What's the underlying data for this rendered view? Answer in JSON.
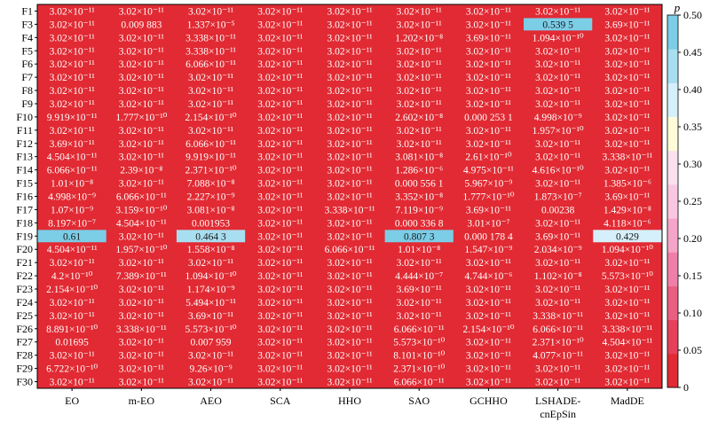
{
  "chart_data": {
    "type": "heatmap",
    "colorbar_label": "p",
    "colorbar_range": [
      0,
      0.5
    ],
    "colorbar_ticks": [
      "0",
      "0.05",
      "0.10",
      "0.15",
      "0.20",
      "0.25",
      "0.30",
      "0.35",
      "0.40",
      "0.45",
      "0.50"
    ],
    "colorbar_colors": [
      "#e12a33",
      "#e6405a",
      "#ea5e82",
      "#f07fa8",
      "#f5a6c8",
      "#f9c8e0",
      "#fbe1ee",
      "#fffcd8",
      "#d6f0fb",
      "#a8dff0",
      "#7ccde6"
    ],
    "columns": [
      "EO",
      "m-EO",
      "AEO",
      "SCA",
      "HHO",
      "SAO",
      "GCHHO",
      "LSHADE-\ncnEpSin",
      "MadDE"
    ],
    "rows": [
      {
        "label": "F1",
        "cells": [
          "3.02×10⁻¹¹",
          "3.02×10⁻¹¹",
          "3.02×10⁻¹¹",
          "3.02×10⁻¹¹",
          "3.02×10⁻¹¹",
          "3.02×10⁻¹¹",
          "3.02×10⁻¹¹",
          "3.02×10⁻¹¹",
          "3.02×10⁻¹¹"
        ],
        "p": [
          0,
          0,
          0,
          0,
          0,
          0,
          0,
          0,
          0
        ]
      },
      {
        "label": "F3",
        "cells": [
          "3.02×10⁻¹¹",
          "0.009 883",
          "1.337×10⁻⁵",
          "3.02×10⁻¹¹",
          "3.02×10⁻¹¹",
          "3.02×10⁻¹¹",
          "3.02×10⁻¹¹",
          "0.539 5",
          "3.69×10⁻¹¹"
        ],
        "p": [
          0,
          0.009883,
          0,
          0,
          0,
          0,
          0,
          0.5395,
          0
        ]
      },
      {
        "label": "F4",
        "cells": [
          "3.02×10⁻¹¹",
          "3.02×10⁻¹¹",
          "3.338×10⁻¹¹",
          "3.02×10⁻¹¹",
          "3.02×10⁻¹¹",
          "1.202×10⁻⁸",
          "3.69×10⁻¹¹",
          "1.094×10⁻¹⁰",
          "3.02×10⁻¹¹"
        ],
        "p": [
          0,
          0,
          0,
          0,
          0,
          0,
          0,
          0,
          0
        ]
      },
      {
        "label": "F5",
        "cells": [
          "3.02×10⁻¹¹",
          "3.02×10⁻¹¹",
          "3.338×10⁻¹¹",
          "3.02×10⁻¹¹",
          "3.02×10⁻¹¹",
          "3.02×10⁻¹¹",
          "3.02×10⁻¹¹",
          "3.02×10⁻¹¹",
          "3.02×10⁻¹¹"
        ],
        "p": [
          0,
          0,
          0,
          0,
          0,
          0,
          0,
          0,
          0
        ]
      },
      {
        "label": "F6",
        "cells": [
          "3.02×10⁻¹¹",
          "3.02×10⁻¹¹",
          "6.066×10⁻¹¹",
          "3.02×10⁻¹¹",
          "3.02×10⁻¹¹",
          "3.02×10⁻¹¹",
          "3.02×10⁻¹¹",
          "3.02×10⁻¹¹",
          "3.02×10⁻¹¹"
        ],
        "p": [
          0,
          0,
          0,
          0,
          0,
          0,
          0,
          0,
          0
        ]
      },
      {
        "label": "F7",
        "cells": [
          "3.02×10⁻¹¹",
          "3.02×10⁻¹¹",
          "3.02×10⁻¹¹",
          "3.02×10⁻¹¹",
          "3.02×10⁻¹¹",
          "3.02×10⁻¹¹",
          "3.02×10⁻¹¹",
          "3.02×10⁻¹¹",
          "3.02×10⁻¹¹"
        ],
        "p": [
          0,
          0,
          0,
          0,
          0,
          0,
          0,
          0,
          0
        ]
      },
      {
        "label": "F8",
        "cells": [
          "3.02×10⁻¹¹",
          "3.02×10⁻¹¹",
          "3.02×10⁻¹¹",
          "3.02×10⁻¹¹",
          "3.02×10⁻¹¹",
          "3.02×10⁻¹¹",
          "3.02×10⁻¹¹",
          "3.02×10⁻¹¹",
          "3.02×10⁻¹¹"
        ],
        "p": [
          0,
          0,
          0,
          0,
          0,
          0,
          0,
          0,
          0
        ]
      },
      {
        "label": "F9",
        "cells": [
          "3.02×10⁻¹¹",
          "3.02×10⁻¹¹",
          "3.02×10⁻¹¹",
          "3.02×10⁻¹¹",
          "3.02×10⁻¹¹",
          "3.02×10⁻¹¹",
          "3.02×10⁻¹¹",
          "3.02×10⁻¹¹",
          "3.02×10⁻¹¹"
        ],
        "p": [
          0,
          0,
          0,
          0,
          0,
          0,
          0,
          0,
          0
        ]
      },
      {
        "label": "F10",
        "cells": [
          "9.919×10⁻¹¹",
          "1.777×10⁻¹⁰",
          "2.154×10⁻¹⁰",
          "3.02×10⁻¹¹",
          "3.02×10⁻¹¹",
          "2.602×10⁻⁸",
          "0.000 253 1",
          "4.998×10⁻⁹",
          "3.02×10⁻¹¹"
        ],
        "p": [
          0,
          0,
          0,
          0,
          0,
          0,
          0.0002531,
          0,
          0
        ]
      },
      {
        "label": "F11",
        "cells": [
          "3.02×10⁻¹¹",
          "3.02×10⁻¹¹",
          "3.02×10⁻¹¹",
          "3.02×10⁻¹¹",
          "3.02×10⁻¹¹",
          "3.02×10⁻¹¹",
          "3.02×10⁻¹¹",
          "1.957×10⁻¹⁰",
          "3.02×10⁻¹¹"
        ],
        "p": [
          0,
          0,
          0,
          0,
          0,
          0,
          0,
          0,
          0
        ]
      },
      {
        "label": "F12",
        "cells": [
          "3.69×10⁻¹¹",
          "3.02×10⁻¹¹",
          "6.066×10⁻¹¹",
          "3.02×10⁻¹¹",
          "3.02×10⁻¹¹",
          "3.02×10⁻¹¹",
          "3.02×10⁻¹¹",
          "3.02×10⁻¹¹",
          "3.02×10⁻¹¹"
        ],
        "p": [
          0,
          0,
          0,
          0,
          0,
          0,
          0,
          0,
          0
        ]
      },
      {
        "label": "F13",
        "cells": [
          "4.504×10⁻¹¹",
          "3.02×10⁻¹¹",
          "9.919×10⁻¹¹",
          "3.02×10⁻¹¹",
          "3.02×10⁻¹¹",
          "3.081×10⁻⁸",
          "2.61×10⁻¹⁰",
          "3.02×10⁻¹¹",
          "3.338×10⁻¹¹"
        ],
        "p": [
          0,
          0,
          0,
          0,
          0,
          0,
          0,
          0,
          0
        ]
      },
      {
        "label": "F14",
        "cells": [
          "6.066×10⁻¹¹",
          "2.39×10⁻⁸",
          "2.371×10⁻¹⁰",
          "3.02×10⁻¹¹",
          "3.02×10⁻¹¹",
          "1.286×10⁻⁶",
          "4.975×10⁻¹¹",
          "4.616×10⁻¹⁰",
          "3.02×10⁻¹¹"
        ],
        "p": [
          0,
          0,
          0,
          0,
          0,
          0,
          0,
          0,
          0
        ]
      },
      {
        "label": "F15",
        "cells": [
          "1.01×10⁻⁸",
          "3.02×10⁻¹¹",
          "7.088×10⁻⁸",
          "3.02×10⁻¹¹",
          "3.02×10⁻¹¹",
          "0.000 556 1",
          "5.967×10⁻⁹",
          "3.02×10⁻¹¹",
          "1.385×10⁻⁶"
        ],
        "p": [
          0,
          0,
          0,
          0,
          0,
          0.0005561,
          0,
          0,
          0
        ]
      },
      {
        "label": "F16",
        "cells": [
          "4.998×10⁻⁹",
          "6.066×10⁻¹¹",
          "2.227×10⁻⁹",
          "3.02×10⁻¹¹",
          "3.02×10⁻¹¹",
          "3.352×10⁻⁸",
          "1.777×10⁻¹⁰",
          "1.873×10⁻⁷",
          "3.69×10⁻¹¹"
        ],
        "p": [
          0,
          0,
          0,
          0,
          0,
          0,
          0,
          0,
          0
        ]
      },
      {
        "label": "F17",
        "cells": [
          "1.07×10⁻⁹",
          "3.159×10⁻¹⁰",
          "3.081×10⁻⁸",
          "3.02×10⁻¹¹",
          "3.338×10⁻¹¹",
          "7.119×10⁻⁹",
          "3.69×10⁻¹¹",
          "0.00238",
          "1.429×10⁻⁸"
        ],
        "p": [
          0,
          0,
          0,
          0,
          0,
          0,
          0,
          0.00238,
          0
        ]
      },
      {
        "label": "F18",
        "cells": [
          "8.197×10⁻⁷",
          "4.504×10⁻¹¹",
          "0.001953",
          "3.02×10⁻¹¹",
          "3.02×10⁻¹¹",
          "0.000 336 8",
          "3.01×10⁻⁷",
          "3.02×10⁻¹¹",
          "4.118×10⁻⁶"
        ],
        "p": [
          0,
          0,
          0.001953,
          0,
          0,
          0.0003368,
          0,
          0,
          0
        ]
      },
      {
        "label": "F19",
        "cells": [
          "0.61",
          "3.02×10⁻¹¹",
          "0.464 3",
          "3.02×10⁻¹¹",
          "3.02×10⁻¹¹",
          "0.807 3",
          "0.000 178 4",
          "3.69×10⁻¹¹",
          "0.429"
        ],
        "p": [
          0.61,
          0,
          0.4643,
          0,
          0,
          0.8073,
          0.0001784,
          0,
          0.429
        ]
      },
      {
        "label": "F20",
        "cells": [
          "4.504×10⁻¹¹",
          "1.957×10⁻¹⁰",
          "1.558×10⁻⁸",
          "3.02×10⁻¹¹",
          "6.066×10⁻¹¹",
          "1.01×10⁻⁸",
          "1.547×10⁻⁹",
          "2.034×10⁻⁹",
          "1.094×10⁻¹⁰"
        ],
        "p": [
          0,
          0,
          0,
          0,
          0,
          0,
          0,
          0,
          0
        ]
      },
      {
        "label": "F21",
        "cells": [
          "3.02×10⁻¹¹",
          "3.02×10⁻¹¹",
          "3.02×10⁻¹¹",
          "3.02×10⁻¹¹",
          "3.02×10⁻¹¹",
          "3.02×10⁻¹¹",
          "3.02×10⁻¹¹",
          "3.02×10⁻¹¹",
          "3.02×10⁻¹¹"
        ],
        "p": [
          0,
          0,
          0,
          0,
          0,
          0,
          0,
          0,
          0
        ]
      },
      {
        "label": "F22",
        "cells": [
          "4.2×10⁻¹⁰",
          "7.389×10⁻¹¹",
          "1.094×10⁻¹⁰",
          "3.02×10⁻¹¹",
          "3.02×10⁻¹¹",
          "4.444×10⁻⁷",
          "4.744×10⁻⁶",
          "1.102×10⁻⁸",
          "5.573×10⁻¹⁰"
        ],
        "p": [
          0,
          0,
          0,
          0,
          0,
          0,
          0,
          0,
          0
        ]
      },
      {
        "label": "F23",
        "cells": [
          "2.154×10⁻¹⁰",
          "3.02×10⁻¹¹",
          "1.174×10⁻⁹",
          "3.02×10⁻¹¹",
          "3.02×10⁻¹¹",
          "3.69×10⁻¹¹",
          "3.02×10⁻¹¹",
          "3.02×10⁻¹¹",
          "3.02×10⁻¹¹"
        ],
        "p": [
          0,
          0,
          0,
          0,
          0,
          0,
          0,
          0,
          0
        ]
      },
      {
        "label": "F24",
        "cells": [
          "3.02×10⁻¹¹",
          "3.02×10⁻¹¹",
          "5.494×10⁻¹¹",
          "3.02×10⁻¹¹",
          "3.02×10⁻¹¹",
          "3.02×10⁻¹¹",
          "3.02×10⁻¹¹",
          "3.02×10⁻¹¹",
          "3.02×10⁻¹¹"
        ],
        "p": [
          0,
          0,
          0,
          0,
          0,
          0,
          0,
          0,
          0
        ]
      },
      {
        "label": "F25",
        "cells": [
          "3.02×10⁻¹¹",
          "3.02×10⁻¹¹",
          "3.69×10⁻¹¹",
          "3.02×10⁻¹¹",
          "3.02×10⁻¹¹",
          "3.02×10⁻¹¹",
          "3.02×10⁻¹¹",
          "3.338×10⁻¹¹",
          "3.02×10⁻¹¹"
        ],
        "p": [
          0,
          0,
          0,
          0,
          0,
          0,
          0,
          0,
          0
        ]
      },
      {
        "label": "F26",
        "cells": [
          "8.891×10⁻¹⁰",
          "3.338×10⁻¹¹",
          "5.573×10⁻¹⁰",
          "3.02×10⁻¹¹",
          "3.02×10⁻¹¹",
          "6.066×10⁻¹¹",
          "2.154×10⁻¹⁰",
          "6.066×10⁻¹¹",
          "3.338×10⁻¹¹"
        ],
        "p": [
          0,
          0,
          0,
          0,
          0,
          0,
          0,
          0,
          0
        ]
      },
      {
        "label": "F27",
        "cells": [
          "0.01695",
          "3.02×10⁻¹¹",
          "0.007 959",
          "3.02×10⁻¹¹",
          "3.02×10⁻¹¹",
          "5.573×10⁻¹⁰",
          "3.02×10⁻¹¹",
          "2.371×10⁻¹⁰",
          "4.504×10⁻¹¹"
        ],
        "p": [
          0.01695,
          0,
          0.007959,
          0,
          0,
          0,
          0,
          0,
          0
        ]
      },
      {
        "label": "F28",
        "cells": [
          "3.02×10⁻¹¹",
          "3.02×10⁻¹¹",
          "3.02×10⁻¹¹",
          "3.02×10⁻¹¹",
          "3.02×10⁻¹¹",
          "8.101×10⁻¹⁰",
          "3.02×10⁻¹¹",
          "4.077×10⁻¹¹",
          "3.02×10⁻¹¹"
        ],
        "p": [
          0,
          0,
          0,
          0,
          0,
          0,
          0,
          0,
          0
        ]
      },
      {
        "label": "F29",
        "cells": [
          "6.722×10⁻¹⁰",
          "3.02×10⁻¹¹",
          "9.26×10⁻⁹",
          "3.02×10⁻¹¹",
          "3.02×10⁻¹¹",
          "2.371×10⁻¹⁰",
          "3.02×10⁻¹¹",
          "3.02×10⁻¹¹",
          "3.02×10⁻¹¹"
        ],
        "p": [
          0,
          0,
          0,
          0,
          0,
          0,
          0,
          0,
          0
        ]
      },
      {
        "label": "F30",
        "cells": [
          "3.02×10⁻¹¹",
          "3.02×10⁻¹¹",
          "3.02×10⁻¹¹",
          "3.02×10⁻¹¹",
          "3.02×10⁻¹¹",
          "6.066×10⁻¹¹",
          "3.02×10⁻¹¹",
          "3.02×10⁻¹¹",
          "3.02×10⁻¹¹"
        ],
        "p": [
          0,
          0,
          0,
          0,
          0,
          0,
          0,
          0,
          0
        ]
      }
    ]
  }
}
